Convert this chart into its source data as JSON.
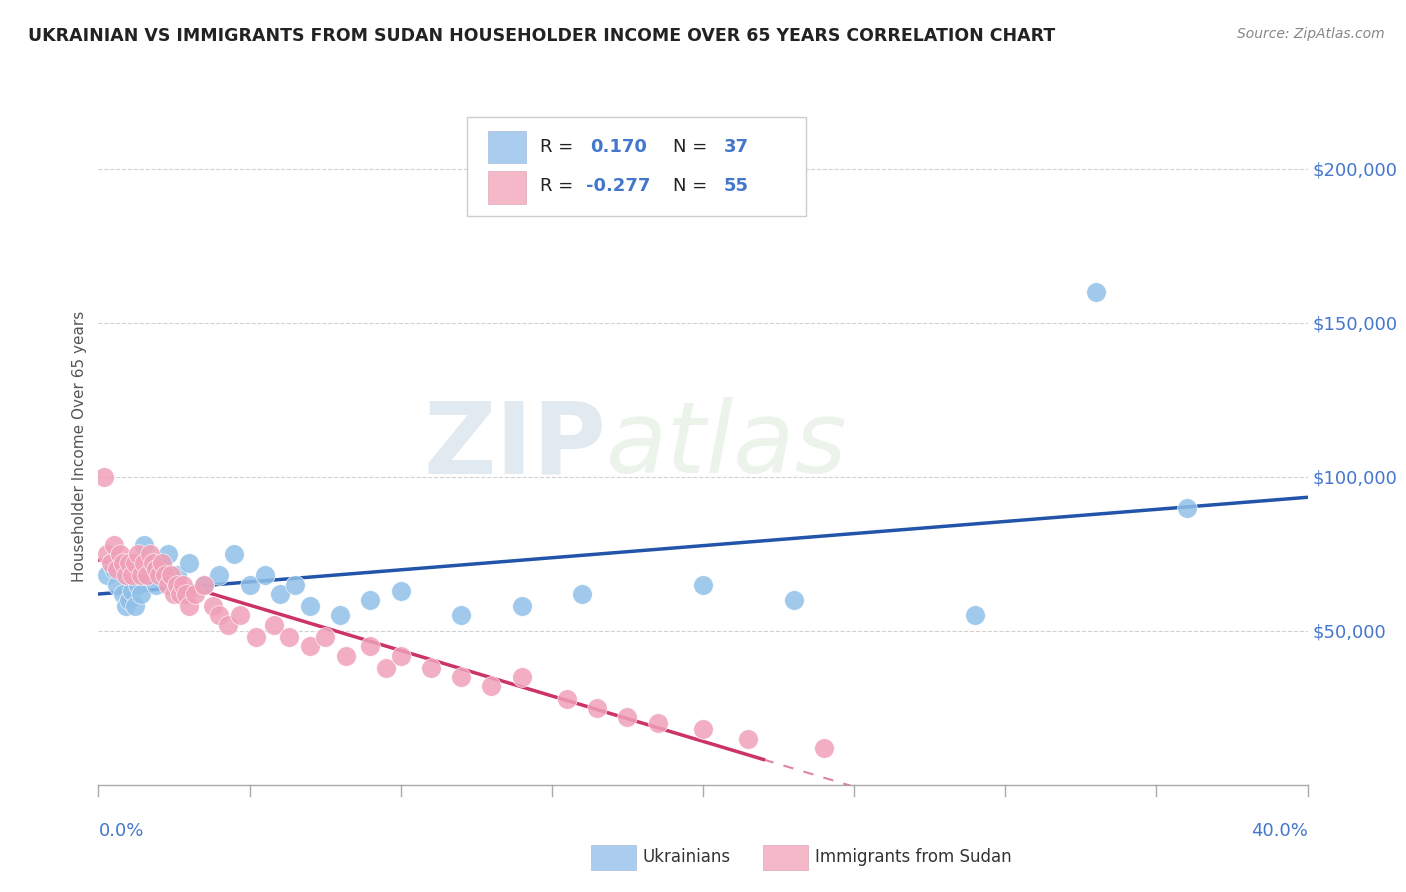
{
  "title": "UKRAINIAN VS IMMIGRANTS FROM SUDAN HOUSEHOLDER INCOME OVER 65 YEARS CORRELATION CHART",
  "source": "Source: ZipAtlas.com",
  "ylabel": "Householder Income Over 65 years",
  "xlim": [
    0.0,
    0.4
  ],
  "ylim": [
    0,
    220000
  ],
  "yticks": [
    50000,
    100000,
    150000,
    200000
  ],
  "ytick_labels": [
    "$50,000",
    "$100,000",
    "$150,000",
    "$200,000"
  ],
  "watermark": "ZIPatlas",
  "background_color": "#ffffff",
  "grid_color": "#cccccc",
  "ukrainians": {
    "color": "#90c0e8",
    "line_color": "#2255aa",
    "x": [
      0.003,
      0.005,
      0.006,
      0.007,
      0.008,
      0.009,
      0.01,
      0.011,
      0.012,
      0.013,
      0.014,
      0.015,
      0.017,
      0.019,
      0.021,
      0.023,
      0.026,
      0.03,
      0.035,
      0.04,
      0.045,
      0.05,
      0.055,
      0.06,
      0.065,
      0.07,
      0.08,
      0.09,
      0.1,
      0.12,
      0.14,
      0.16,
      0.2,
      0.23,
      0.29,
      0.33,
      0.36
    ],
    "y": [
      68000,
      70000,
      65000,
      72000,
      62000,
      58000,
      60000,
      63000,
      58000,
      65000,
      62000,
      78000,
      68000,
      65000,
      72000,
      75000,
      68000,
      72000,
      65000,
      68000,
      75000,
      65000,
      68000,
      62000,
      65000,
      58000,
      55000,
      60000,
      63000,
      55000,
      58000,
      62000,
      65000,
      60000,
      55000,
      160000,
      90000
    ]
  },
  "sudanese": {
    "color": "#f0a0b8",
    "line_color": "#cc3366",
    "x": [
      0.002,
      0.003,
      0.004,
      0.005,
      0.006,
      0.007,
      0.008,
      0.009,
      0.01,
      0.011,
      0.012,
      0.013,
      0.014,
      0.015,
      0.016,
      0.017,
      0.018,
      0.019,
      0.02,
      0.021,
      0.022,
      0.023,
      0.024,
      0.025,
      0.026,
      0.027,
      0.028,
      0.029,
      0.03,
      0.032,
      0.035,
      0.038,
      0.04,
      0.043,
      0.047,
      0.052,
      0.058,
      0.063,
      0.07,
      0.075,
      0.082,
      0.09,
      0.095,
      0.1,
      0.11,
      0.12,
      0.13,
      0.14,
      0.155,
      0.165,
      0.175,
      0.185,
      0.2,
      0.215,
      0.24
    ],
    "y": [
      100000,
      75000,
      72000,
      78000,
      70000,
      75000,
      72000,
      68000,
      72000,
      68000,
      72000,
      75000,
      68000,
      72000,
      68000,
      75000,
      72000,
      70000,
      68000,
      72000,
      68000,
      65000,
      68000,
      62000,
      65000,
      62000,
      65000,
      62000,
      58000,
      62000,
      65000,
      58000,
      55000,
      52000,
      55000,
      48000,
      52000,
      48000,
      45000,
      48000,
      42000,
      45000,
      38000,
      42000,
      38000,
      35000,
      32000,
      35000,
      28000,
      25000,
      22000,
      20000,
      18000,
      15000,
      12000
    ]
  },
  "legend_box": {
    "color1": "#aaccee",
    "color2": "#f4b8c8"
  },
  "bottom_legend": {
    "label1": "Ukrainians",
    "label2": "Immigrants from Sudan",
    "color1": "#aaccee",
    "color2": "#f4b8c8"
  }
}
